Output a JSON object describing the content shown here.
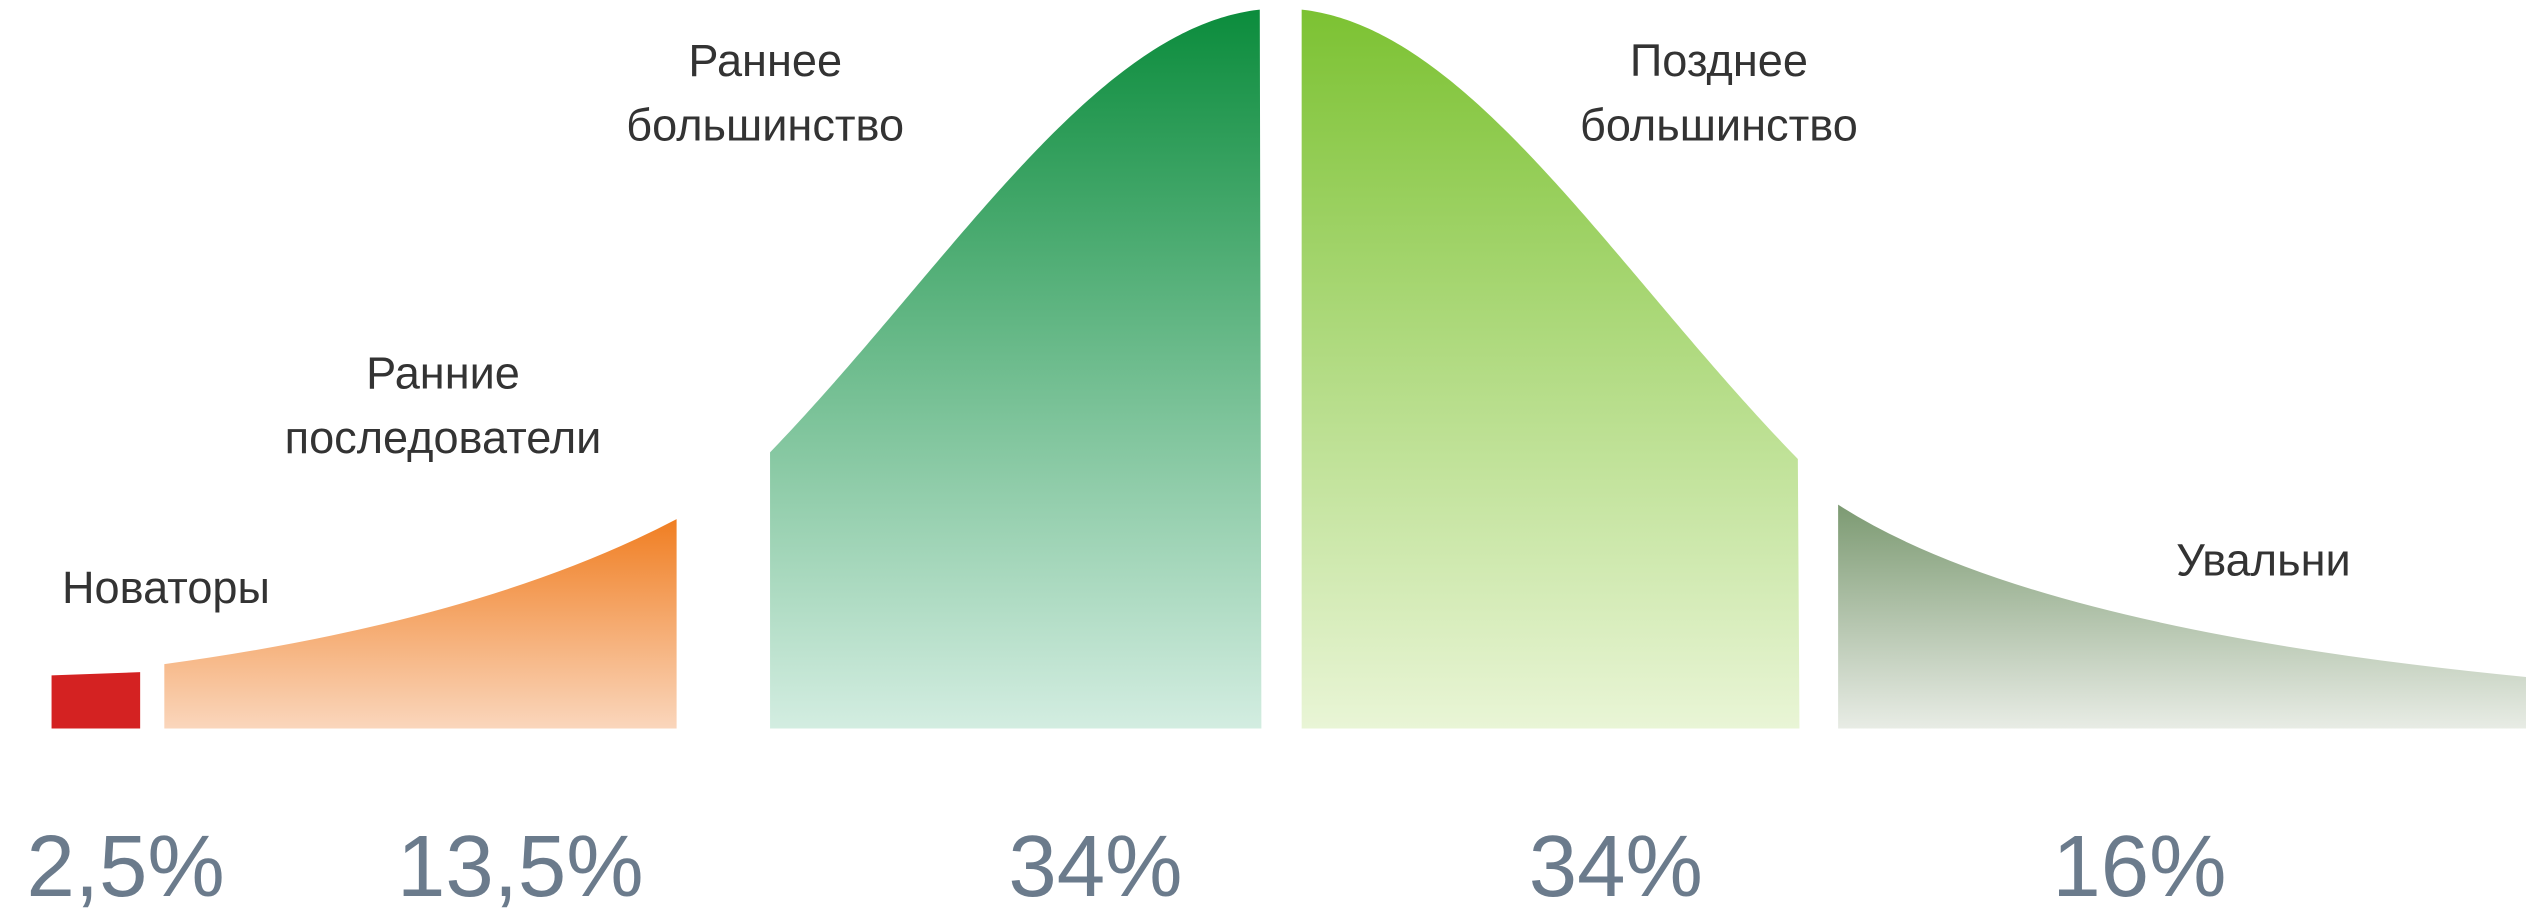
{
  "chart_data": {
    "type": "adoption-curve",
    "categories": [
      "Новаторы",
      "Ранние последователи",
      "Раннее большинство",
      "Позднее большинство",
      "Увальни"
    ],
    "values": [
      2.5,
      13.5,
      34,
      34,
      16
    ],
    "value_labels": [
      "2,5%",
      "13,5%",
      "34%",
      "34%",
      "16%"
    ],
    "colors": [
      "#d42222",
      "#f07e22",
      "#0b8c3c",
      "#7cc232",
      "#7c9a72"
    ]
  }
}
